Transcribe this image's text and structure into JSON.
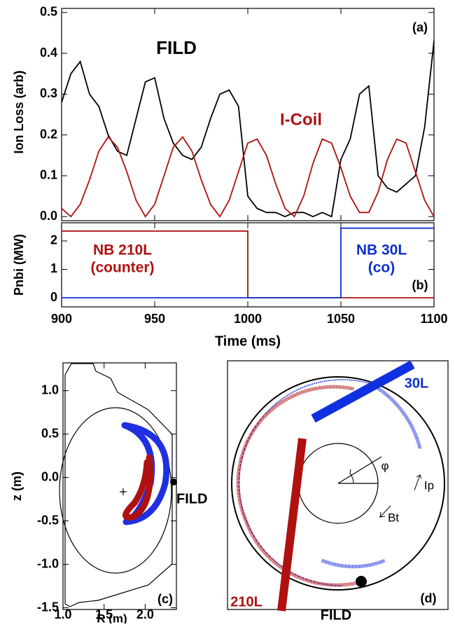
{
  "chart_data": [
    {
      "type": "line",
      "ylabel": "Ion Loss (arb)",
      "annotations": [
        "FILD",
        "I-Coil",
        "(a)"
      ],
      "x": [
        900,
        905,
        910,
        915,
        920,
        925,
        930,
        935,
        940,
        945,
        950,
        955,
        960,
        965,
        970,
        975,
        980,
        985,
        990,
        995,
        1000,
        1005,
        1010,
        1015,
        1020,
        1025,
        1030,
        1035,
        1040,
        1045,
        1050,
        1055,
        1060,
        1065,
        1070,
        1075,
        1080,
        1085,
        1090,
        1095,
        1100
      ],
      "series": [
        {
          "name": "FILD",
          "color": "#000000",
          "values": [
            0.28,
            0.35,
            0.38,
            0.3,
            0.27,
            0.2,
            0.16,
            0.15,
            0.24,
            0.33,
            0.34,
            0.24,
            0.18,
            0.15,
            0.14,
            0.17,
            0.24,
            0.3,
            0.31,
            0.27,
            0.05,
            0.02,
            0.01,
            0.01,
            0.0,
            0.01,
            0.01,
            0.0,
            0.01,
            0.0,
            0.14,
            0.19,
            0.3,
            0.32,
            0.1,
            0.07,
            0.06,
            0.08,
            0.1,
            0.22,
            0.43
          ]
        },
        {
          "name": "I-Coil",
          "color": "#b01010",
          "values": [
            0.02,
            0.0,
            0.03,
            0.09,
            0.16,
            0.195,
            0.17,
            0.11,
            0.04,
            0.0,
            0.03,
            0.1,
            0.17,
            0.195,
            0.16,
            0.09,
            0.03,
            0.0,
            0.04,
            0.11,
            0.18,
            0.19,
            0.15,
            0.08,
            0.02,
            0.0,
            0.05,
            0.13,
            0.19,
            0.18,
            0.12,
            0.05,
            0.01,
            0.01,
            0.06,
            0.14,
            0.19,
            0.18,
            0.11,
            0.04,
            0.0
          ]
        }
      ],
      "xlim": [
        900,
        1100
      ],
      "xticks": [
        900,
        950,
        1000,
        1050,
        1100
      ],
      "show_xtick_labels": false,
      "ylim": [
        -0.01,
        0.51
      ],
      "yticks": [
        {
          "value": 0,
          "label": "0.0"
        },
        0.1,
        0.2,
        0.3,
        0.4,
        0.5
      ]
    },
    {
      "type": "line",
      "ylabel": "Pnbi (MW)",
      "xlabel": "Time (ms)",
      "annotations": [
        "NB 210L",
        "(counter)",
        "NB 30L",
        "(co)",
        "(b)"
      ],
      "x": [
        900,
        1000,
        1000,
        1050,
        1050,
        1100
      ],
      "series": [
        {
          "name": "NB 210L",
          "color": "#b01010",
          "values": [
            2.35,
            2.35,
            0,
            0,
            0,
            0
          ]
        },
        {
          "name": "NB 30L",
          "color": "#1030d0",
          "values": [
            0,
            0,
            0,
            0,
            2.45,
            2.45
          ]
        }
      ],
      "xlim": [
        900,
        1100
      ],
      "xticks": [
        900,
        950,
        1000,
        1050,
        1100
      ],
      "show_xtick_labels": true,
      "ylim": [
        -0.32,
        2.64
      ],
      "yticks": [
        0,
        1,
        2
      ]
    },
    {
      "type": "cross-section",
      "xlabel": "R (m)",
      "ylabel": "z (m)",
      "annotations": [
        "FILD",
        "(c)"
      ],
      "xlim": [
        1.0,
        2.38
      ],
      "xticks": [
        {
          "value": 1,
          "label": "1.0"
        },
        1.5,
        {
          "value": 2,
          "label": "2.0"
        }
      ],
      "ylim": [
        -1.52,
        1.32
      ],
      "yticks": [
        -1.5,
        {
          "value": -1,
          "label": "-1.0"
        },
        -0.5,
        {
          "value": 0,
          "label": "0.0"
        },
        0.5,
        {
          "value": 1,
          "label": "1.0"
        }
      ]
    },
    {
      "type": "schematic",
      "annotations": [
        "30L",
        "210L",
        "FILD",
        "(d)",
        "φ",
        "Ip",
        "Bt"
      ]
    }
  ]
}
